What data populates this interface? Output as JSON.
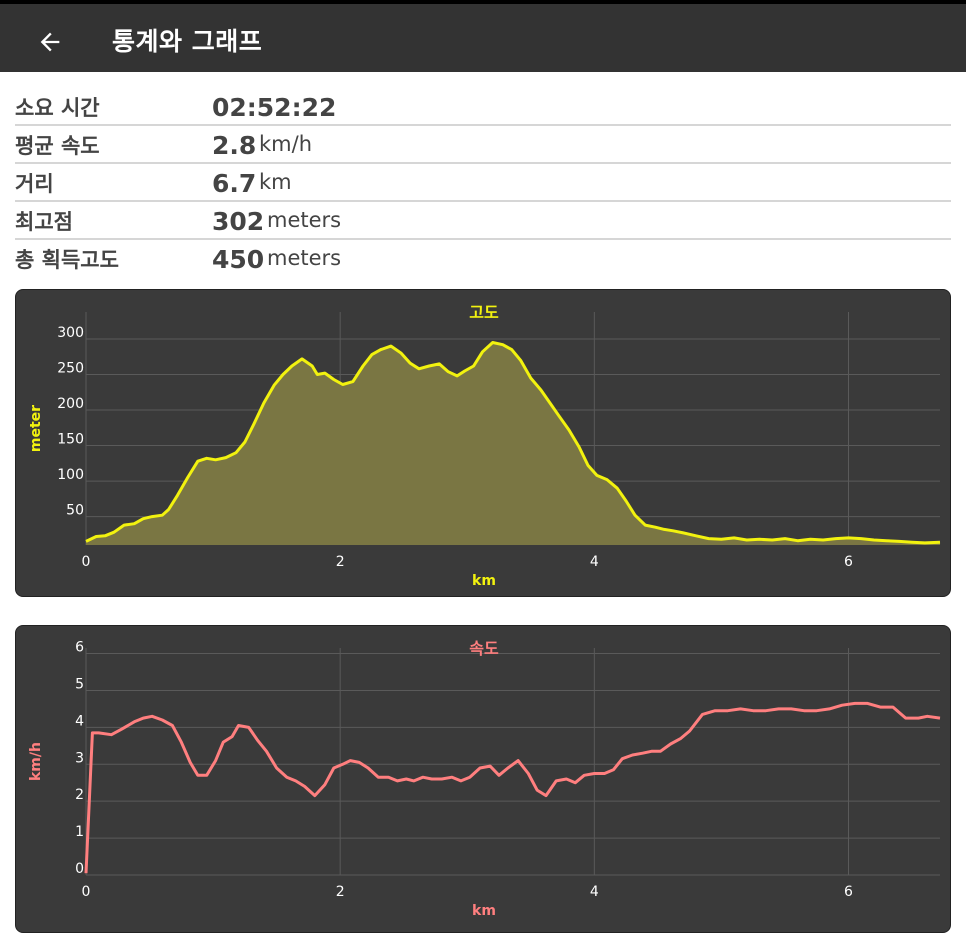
{
  "app": {
    "title": "통계와 그래프",
    "back_icon": "arrow-left-icon"
  },
  "stats": [
    {
      "label": "소요 시간",
      "value": "02:52:22",
      "unit": ""
    },
    {
      "label": "평균 속도",
      "value": "2.8",
      "unit": "km/h"
    },
    {
      "label": "거리",
      "value": "6.7",
      "unit": "km"
    },
    {
      "label": "최고점",
      "value": "302",
      "unit": "meters"
    },
    {
      "label": "총 획득고도",
      "value": "450",
      "unit": "meters"
    }
  ],
  "colors": {
    "altitude": "#f2f20f",
    "altitude_fill": "#7a7643",
    "speed": "#ff7f7f",
    "card_bg": "#3a3a3a"
  },
  "chart_data": [
    {
      "type": "area",
      "title": "고도",
      "xlabel": "km",
      "ylabel": "meter",
      "xlim": [
        0,
        6.72
      ],
      "ylim": [
        10,
        338
      ],
      "xticks": [
        0,
        2,
        4,
        6
      ],
      "yticks": [
        50,
        100,
        150,
        200,
        250,
        300
      ],
      "grid": true,
      "x": [
        0,
        0.08,
        0.15,
        0.22,
        0.3,
        0.38,
        0.45,
        0.52,
        0.6,
        0.65,
        0.72,
        0.8,
        0.88,
        0.95,
        1.02,
        1.1,
        1.18,
        1.25,
        1.32,
        1.4,
        1.48,
        1.55,
        1.62,
        1.7,
        1.78,
        1.82,
        1.88,
        1.95,
        2.02,
        2.1,
        2.18,
        2.25,
        2.32,
        2.4,
        2.48,
        2.55,
        2.62,
        2.7,
        2.78,
        2.85,
        2.92,
        2.98,
        3.05,
        3.12,
        3.2,
        3.28,
        3.35,
        3.42,
        3.5,
        3.58,
        3.65,
        3.72,
        3.8,
        3.88,
        3.95,
        4.02,
        4.1,
        4.18,
        4.25,
        4.32,
        4.4,
        4.48,
        4.55,
        4.62,
        4.7,
        4.8,
        4.9,
        5.0,
        5.1,
        5.2,
        5.3,
        5.4,
        5.5,
        5.6,
        5.7,
        5.8,
        5.9,
        6.0,
        6.1,
        6.2,
        6.3,
        6.4,
        6.5,
        6.6,
        6.72
      ],
      "y": [
        15,
        22,
        23,
        28,
        38,
        40,
        47,
        50,
        52,
        60,
        80,
        105,
        128,
        132,
        130,
        133,
        140,
        155,
        180,
        210,
        235,
        250,
        262,
        272,
        262,
        250,
        252,
        243,
        236,
        240,
        262,
        278,
        285,
        290,
        280,
        266,
        258,
        262,
        265,
        254,
        248,
        255,
        262,
        282,
        295,
        292,
        285,
        270,
        245,
        228,
        210,
        192,
        172,
        148,
        122,
        108,
        102,
        90,
        72,
        52,
        38,
        35,
        32,
        30,
        27,
        23,
        19,
        18,
        20,
        17,
        18,
        17,
        19,
        16,
        18,
        17,
        19,
        20,
        19,
        17,
        16,
        15,
        14,
        13,
        14
      ]
    },
    {
      "type": "line",
      "title": "속도",
      "xlabel": "km",
      "ylabel": "km/h",
      "xlim": [
        0,
        6.72
      ],
      "ylim": [
        0,
        6.15
      ],
      "xticks": [
        0,
        2,
        4,
        6
      ],
      "yticks": [
        0,
        1,
        2,
        3,
        4,
        5,
        6
      ],
      "grid": true,
      "x": [
        0,
        0.05,
        0.1,
        0.2,
        0.28,
        0.38,
        0.45,
        0.52,
        0.6,
        0.68,
        0.75,
        0.82,
        0.88,
        0.95,
        1.02,
        1.08,
        1.15,
        1.2,
        1.28,
        1.35,
        1.42,
        1.5,
        1.58,
        1.65,
        1.72,
        1.8,
        1.88,
        1.95,
        2.02,
        2.08,
        2.15,
        2.22,
        2.3,
        2.38,
        2.45,
        2.52,
        2.58,
        2.65,
        2.72,
        2.8,
        2.88,
        2.95,
        3.02,
        3.1,
        3.18,
        3.25,
        3.32,
        3.4,
        3.48,
        3.55,
        3.62,
        3.7,
        3.78,
        3.85,
        3.92,
        4.0,
        4.08,
        4.15,
        4.22,
        4.3,
        4.38,
        4.45,
        4.52,
        4.6,
        4.68,
        4.75,
        4.85,
        4.95,
        5.05,
        5.15,
        5.25,
        5.35,
        5.45,
        5.55,
        5.65,
        5.75,
        5.85,
        5.95,
        6.05,
        6.15,
        6.25,
        6.35,
        6.45,
        6.55,
        6.62,
        6.72
      ],
      "y": [
        0.05,
        3.85,
        3.85,
        3.8,
        3.95,
        4.15,
        4.25,
        4.3,
        4.2,
        4.05,
        3.6,
        3.05,
        2.7,
        2.7,
        3.1,
        3.6,
        3.75,
        4.05,
        4.0,
        3.65,
        3.35,
        2.9,
        2.65,
        2.55,
        2.4,
        2.15,
        2.45,
        2.9,
        3.0,
        3.1,
        3.05,
        2.9,
        2.65,
        2.65,
        2.55,
        2.6,
        2.55,
        2.65,
        2.6,
        2.6,
        2.65,
        2.55,
        2.65,
        2.9,
        2.95,
        2.7,
        2.9,
        3.1,
        2.75,
        2.3,
        2.15,
        2.55,
        2.6,
        2.5,
        2.7,
        2.75,
        2.75,
        2.85,
        3.15,
        3.25,
        3.3,
        3.35,
        3.35,
        3.55,
        3.7,
        3.9,
        4.35,
        4.45,
        4.45,
        4.5,
        4.45,
        4.45,
        4.5,
        4.5,
        4.45,
        4.45,
        4.5,
        4.6,
        4.65,
        4.65,
        4.55,
        4.55,
        4.25,
        4.25,
        4.3,
        4.25
      ]
    }
  ]
}
